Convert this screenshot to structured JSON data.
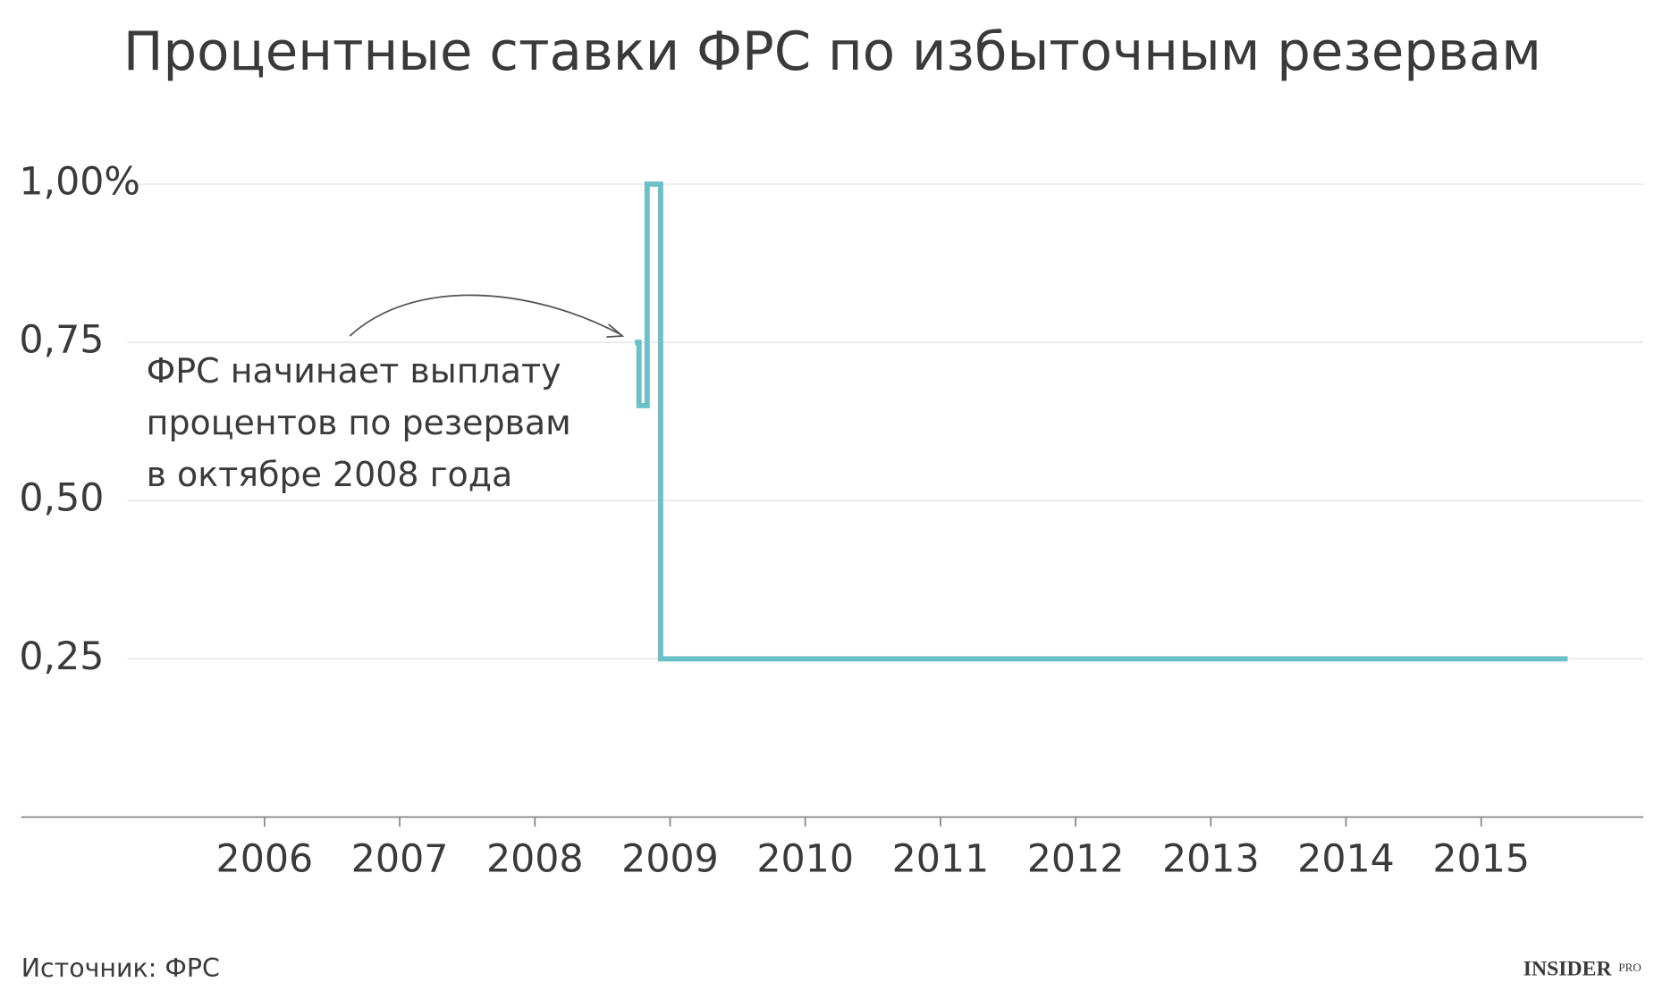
{
  "chart_data": {
    "type": "line",
    "title": "Процентные ставки ФРС по избыточным резервам",
    "x": [
      2008.74,
      2008.77,
      2008.77,
      2008.83,
      2008.83,
      2008.93,
      2008.93,
      2015.64
    ],
    "values": [
      0.75,
      0.75,
      0.65,
      0.65,
      1,
      1,
      0.25,
      0.25
    ],
    "color": "#6cc0c8",
    "xlim": [
      2004.2,
      2016.2
    ],
    "xticks": [
      2006,
      2007,
      2008,
      2009,
      2010,
      2011,
      2012,
      2013,
      2014,
      2015
    ],
    "ylim": [
      0,
      1.1
    ],
    "yticks": [
      {
        "value": 0.25,
        "label": "0,25"
      },
      {
        "value": 0.5,
        "label": "0,50"
      },
      {
        "value": 0.75,
        "label": "0,75"
      },
      {
        "value": 1,
        "label": "1,00%"
      }
    ],
    "grid": true,
    "annotation": [
      "ФРС начинает выплату",
      "процентов по резервам",
      "в октябре 2008 года"
    ],
    "source": "Источник: ФРС",
    "logo": "INSIDER",
    "logo_suffix": "PRO"
  }
}
